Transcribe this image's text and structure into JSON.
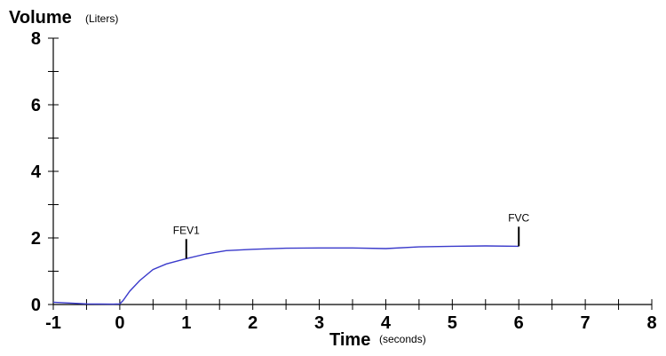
{
  "chart_data": {
    "type": "line",
    "ylabel": "Volume",
    "ylabel_unit": "(Liters)",
    "xlabel": "Time",
    "xlabel_unit": "(seconds)",
    "xlim": [
      -1,
      8
    ],
    "ylim": [
      0,
      8
    ],
    "x_major_ticks": [
      -1,
      0,
      1,
      2,
      3,
      4,
      5,
      6,
      7,
      8
    ],
    "x_minor_step": 0.5,
    "y_major_ticks": [
      0,
      2,
      4,
      6,
      8
    ],
    "y_minor_step": 1,
    "grid": false,
    "line_color": "#3a3acb",
    "series": [
      {
        "x": [
          -1,
          -0.5,
          -0.1,
          0,
          0.05,
          0.15,
          0.3,
          0.5,
          0.7,
          1.0,
          1.3,
          1.6,
          2.0,
          2.5,
          3.0,
          3.5,
          4.0,
          4.5,
          5.0,
          5.5,
          6.0
        ],
        "y": [
          0.07,
          0.02,
          0.01,
          0.02,
          0.12,
          0.4,
          0.72,
          1.05,
          1.22,
          1.38,
          1.52,
          1.62,
          1.66,
          1.69,
          1.7,
          1.7,
          1.68,
          1.73,
          1.75,
          1.76,
          1.75
        ]
      }
    ],
    "annotations": [
      {
        "label": "FEV1",
        "x": 1.0,
        "y": 1.38
      },
      {
        "label": "FVC",
        "x": 6.0,
        "y": 1.75
      }
    ]
  }
}
